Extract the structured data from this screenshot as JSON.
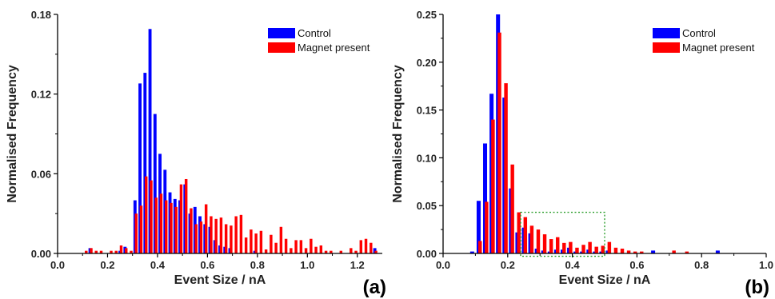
{
  "chart_data": [
    {
      "type": "bar",
      "panel_label": "(a)",
      "xlabel": "Event Size / nA",
      "ylabel": "Normalised Frequency",
      "xlim": [
        0.0,
        1.3
      ],
      "ylim": [
        0.0,
        0.18
      ],
      "xticks": [
        0.0,
        0.2,
        0.4,
        0.6,
        0.8,
        1.0,
        1.2
      ],
      "xtick_labels": [
        "0.0",
        "0.2",
        "0.4",
        "0.6",
        "0.8",
        "1.0",
        "1.2"
      ],
      "yticks": [
        0.0,
        0.06,
        0.12,
        0.18
      ],
      "ytick_labels": [
        "0.00",
        "0.06",
        "0.12",
        "0.18"
      ],
      "bin_width": 0.02,
      "legend_position": "top-right",
      "grid": false,
      "series": [
        {
          "name": "Control",
          "color": "#0000ff",
          "x": [
            0.13,
            0.25,
            0.27,
            0.31,
            0.33,
            0.35,
            0.37,
            0.39,
            0.41,
            0.43,
            0.45,
            0.47,
            0.49,
            0.51,
            0.53,
            0.55,
            0.57,
            0.59,
            0.61,
            0.63,
            0.65,
            0.67,
            0.69,
            0.79,
            1.27
          ],
          "values": [
            0.004,
            0.002,
            0.005,
            0.04,
            0.128,
            0.136,
            0.169,
            0.105,
            0.075,
            0.063,
            0.046,
            0.041,
            0.04,
            0.052,
            0.03,
            0.035,
            0.028,
            0.022,
            0.02,
            0.01,
            0.006,
            0.005,
            0.004,
            0.002,
            0.004
          ]
        },
        {
          "name": "Magnet present",
          "color": "#ff0000",
          "x": [
            0.11,
            0.13,
            0.15,
            0.17,
            0.21,
            0.23,
            0.25,
            0.27,
            0.29,
            0.31,
            0.33,
            0.35,
            0.37,
            0.39,
            0.41,
            0.43,
            0.45,
            0.47,
            0.49,
            0.51,
            0.53,
            0.55,
            0.57,
            0.59,
            0.61,
            0.63,
            0.65,
            0.67,
            0.69,
            0.71,
            0.73,
            0.75,
            0.77,
            0.79,
            0.81,
            0.83,
            0.85,
            0.87,
            0.89,
            0.91,
            0.93,
            0.95,
            0.97,
            0.99,
            1.01,
            1.03,
            1.05,
            1.07,
            1.09,
            1.13,
            1.17,
            1.19,
            1.21,
            1.23,
            1.25,
            1.27
          ],
          "values": [
            0.002,
            0.004,
            0.002,
            0.002,
            0.002,
            0.002,
            0.006,
            0.004,
            0.002,
            0.03,
            0.036,
            0.058,
            0.055,
            0.042,
            0.045,
            0.04,
            0.038,
            0.035,
            0.052,
            0.056,
            0.034,
            0.022,
            0.024,
            0.037,
            0.028,
            0.026,
            0.027,
            0.022,
            0.021,
            0.028,
            0.029,
            0.012,
            0.018,
            0.015,
            0.017,
            0.003,
            0.014,
            0.008,
            0.02,
            0.011,
            0.004,
            0.01,
            0.01,
            0.004,
            0.011,
            0.005,
            0.006,
            0.002,
            0.002,
            0.002,
            0.004,
            0.002,
            0.01,
            0.011,
            0.008,
            0.002
          ]
        }
      ]
    },
    {
      "type": "bar",
      "panel_label": "(b)",
      "xlabel": "Event Size / nA",
      "ylabel": "Normalised Frequency",
      "xlim": [
        0.0,
        1.0
      ],
      "ylim": [
        0.0,
        0.25
      ],
      "xticks": [
        0.0,
        0.2,
        0.4,
        0.6,
        0.8,
        1.0
      ],
      "xtick_labels": [
        "0.0",
        "0.2",
        "0.4",
        "0.6",
        "0.8",
        "1.0"
      ],
      "yticks": [
        0.0,
        0.05,
        0.1,
        0.15,
        0.2,
        0.25
      ],
      "ytick_labels": [
        "0.00",
        "0.05",
        "0.10",
        "0.15",
        "0.20",
        "0.25"
      ],
      "bin_width": 0.02,
      "legend_position": "top-right",
      "grid": false,
      "highlight_box": {
        "x_range": [
          0.24,
          0.5
        ],
        "y_range": [
          -0.003,
          0.043
        ],
        "color": "#2e9e2e"
      },
      "series": [
        {
          "name": "Control",
          "color": "#0000ff",
          "x": [
            0.09,
            0.11,
            0.13,
            0.15,
            0.17,
            0.19,
            0.21,
            0.23,
            0.25,
            0.27,
            0.29,
            0.31,
            0.33,
            0.35,
            0.37,
            0.39,
            0.41,
            0.43,
            0.45,
            0.47,
            0.49,
            0.51,
            0.65,
            0.85
          ],
          "values": [
            0.002,
            0.055,
            0.115,
            0.167,
            0.25,
            0.163,
            0.068,
            0.022,
            0.027,
            0.021,
            0.005,
            0.003,
            0.002,
            0.004,
            0.004,
            0.006,
            0.002,
            0.002,
            0.004,
            0.002,
            0.002,
            0.003,
            0.003,
            0.003
          ]
        },
        {
          "name": "Magnet present",
          "color": "#ff0000",
          "x": [
            0.11,
            0.13,
            0.15,
            0.17,
            0.19,
            0.21,
            0.23,
            0.25,
            0.27,
            0.29,
            0.31,
            0.33,
            0.35,
            0.37,
            0.39,
            0.41,
            0.43,
            0.45,
            0.47,
            0.49,
            0.51,
            0.53,
            0.55,
            0.57,
            0.59,
            0.61,
            0.71,
            0.75
          ],
          "values": [
            0.013,
            0.054,
            0.14,
            0.231,
            0.178,
            0.093,
            0.043,
            0.038,
            0.029,
            0.025,
            0.02,
            0.015,
            0.017,
            0.011,
            0.012,
            0.006,
            0.009,
            0.012,
            0.007,
            0.008,
            0.012,
            0.006,
            0.005,
            0.003,
            0.002,
            0.002,
            0.003,
            0.002
          ]
        }
      ]
    }
  ]
}
